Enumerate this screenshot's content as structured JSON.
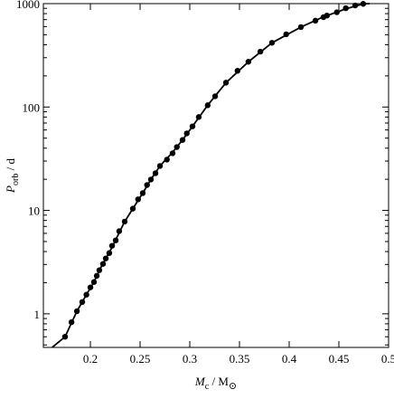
{
  "chart_data": {
    "type": "scatter",
    "xlabel": {
      "symbol": "M",
      "subscript": "c",
      "unit": " / M",
      "unit_subscript": "⊙"
    },
    "ylabel": {
      "symbol": "P",
      "subscript": "orb",
      "unit": " / d"
    },
    "xlim": [
      0.1527,
      0.5
    ],
    "ylim": [
      0.473,
      1000
    ],
    "ylog": true,
    "xticks": [
      0.2,
      0.25,
      0.3,
      0.35,
      0.4,
      0.45,
      0.5
    ],
    "yticks": [
      1,
      10,
      100,
      1000
    ],
    "series": [
      {
        "mode": "line",
        "color": "#000000",
        "x": [
          0.1615,
          0.1745,
          0.1864,
          0.196,
          0.2036,
          0.209,
          0.2155,
          0.2218,
          0.229,
          0.2345,
          0.2427,
          0.2527,
          0.2609,
          0.27,
          0.2827,
          0.2927,
          0.3027,
          0.318,
          0.3364,
          0.359,
          0.3827,
          0.4118,
          0.4345,
          0.457,
          0.4745,
          0.481
        ],
        "values": [
          0.473,
          0.6,
          1.06,
          1.53,
          2.03,
          2.64,
          3.43,
          4.4,
          6.1,
          7.8,
          10.4,
          14.7,
          19.9,
          26.9,
          36.5,
          48,
          65,
          104,
          172,
          274,
          418,
          593,
          745,
          890,
          995,
          1000
        ]
      },
      {
        "mode": "markers",
        "color": "#000000",
        "x": [
          0.1745,
          0.181,
          0.1864,
          0.1918,
          0.196,
          0.2,
          0.2036,
          0.2064,
          0.209,
          0.2127,
          0.2155,
          0.219,
          0.2218,
          0.2255,
          0.229,
          0.2345,
          0.2427,
          0.248,
          0.2527,
          0.257,
          0.2609,
          0.2655,
          0.27,
          0.277,
          0.2827,
          0.287,
          0.2927,
          0.297,
          0.3027,
          0.309,
          0.318,
          0.3255,
          0.3364,
          0.348,
          0.359,
          0.371,
          0.3827,
          0.397,
          0.4118,
          0.4264,
          0.4345,
          0.438,
          0.448,
          0.457,
          0.4664,
          0.4745
        ],
        "values": [
          0.6,
          0.83,
          1.06,
          1.3,
          1.53,
          1.8,
          2.03,
          2.33,
          2.64,
          3.04,
          3.43,
          3.87,
          4.55,
          5.13,
          6.3,
          7.8,
          10.4,
          12.8,
          14.7,
          17.6,
          19.9,
          22.9,
          26.9,
          31,
          35.7,
          41,
          48,
          55.6,
          65,
          80,
          104,
          127,
          172,
          224,
          274,
          343,
          418,
          505,
          593,
          684,
          739,
          766,
          825,
          903,
          960,
          995
        ]
      }
    ]
  }
}
